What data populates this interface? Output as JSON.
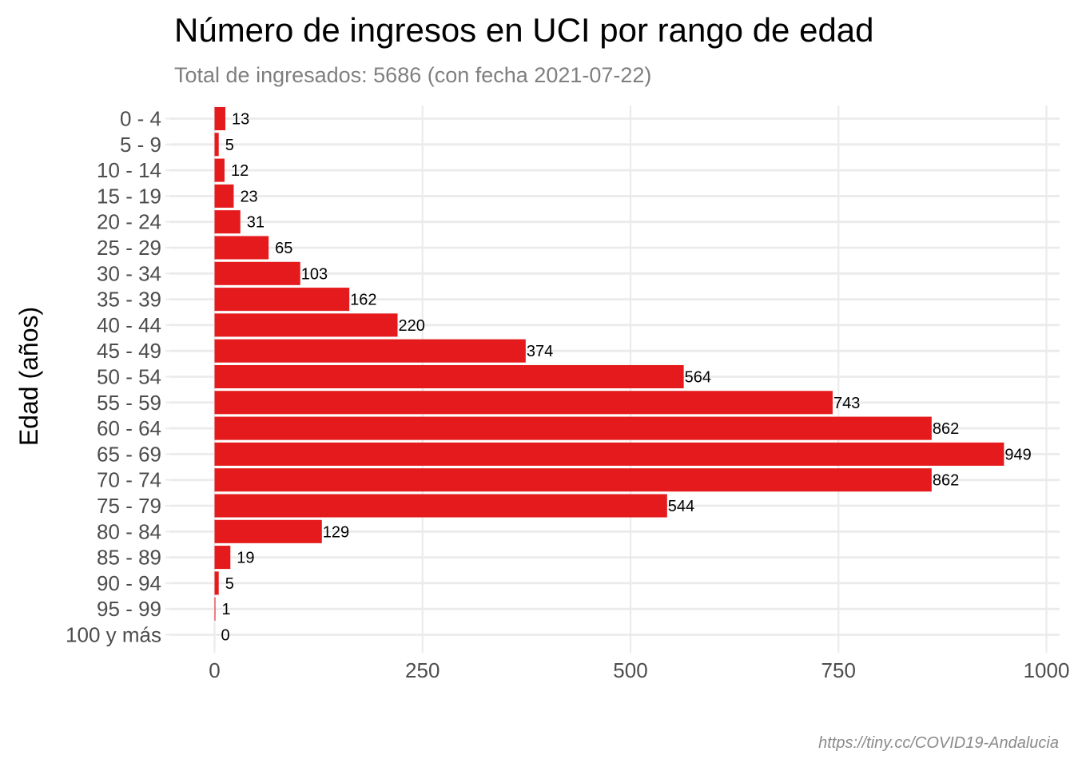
{
  "chart_data": {
    "type": "bar",
    "orientation": "horizontal",
    "title": "Número de ingresos en UCI por rango de edad",
    "subtitle": "Total de ingresados: 5686 (con fecha 2021-07-22)",
    "ylabel": "Edad (años)",
    "xlabel": "",
    "caption": "https://tiny.cc/COVID19-Andalucia",
    "categories": [
      "0 - 4",
      "5 - 9",
      "10 - 14",
      "15 - 19",
      "20 - 24",
      "25 - 29",
      "30 - 34",
      "35 - 39",
      "40 - 44",
      "45 - 49",
      "50 - 54",
      "55 - 59",
      "60 - 64",
      "65 - 69",
      "70 - 74",
      "75 - 79",
      "80 - 84",
      "85 - 89",
      "90 - 94",
      "95 - 99",
      "100 y más"
    ],
    "values": [
      13,
      5,
      12,
      23,
      31,
      65,
      103,
      162,
      220,
      374,
      564,
      743,
      862,
      949,
      862,
      544,
      129,
      19,
      5,
      1,
      0
    ],
    "xlim": [
      0,
      1000
    ],
    "xticks": [
      0,
      250,
      500,
      750,
      1000
    ],
    "bar_color": "#e41a1c",
    "grid_color": "#ebebeb",
    "grid": true
  }
}
